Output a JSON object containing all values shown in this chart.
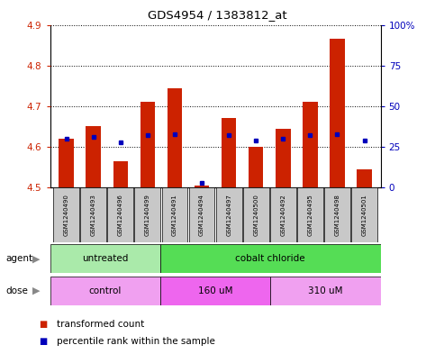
{
  "title": "GDS4954 / 1383812_at",
  "samples": [
    "GSM1240490",
    "GSM1240493",
    "GSM1240496",
    "GSM1240499",
    "GSM1240491",
    "GSM1240494",
    "GSM1240497",
    "GSM1240500",
    "GSM1240492",
    "GSM1240495",
    "GSM1240498",
    "GSM1240501"
  ],
  "transformed_count": [
    4.62,
    4.65,
    4.565,
    4.71,
    4.745,
    4.505,
    4.67,
    4.6,
    4.645,
    4.71,
    4.865,
    4.545
  ],
  "percentile_rank": [
    30,
    31,
    28,
    32,
    33,
    3,
    32,
    29,
    30,
    32,
    33,
    29
  ],
  "ymin": 4.5,
  "ymax": 4.9,
  "yticks": [
    4.5,
    4.6,
    4.7,
    4.8,
    4.9
  ],
  "right_yticks": [
    0,
    25,
    50,
    75,
    100
  ],
  "right_yticklabels": [
    "0",
    "25",
    "50",
    "75",
    "100%"
  ],
  "agent_groups": [
    {
      "label": "untreated",
      "start": 0,
      "end": 4,
      "color": "#aaeaaa"
    },
    {
      "label": "cobalt chloride",
      "start": 4,
      "end": 12,
      "color": "#55dd55"
    }
  ],
  "dose_groups": [
    {
      "label": "control",
      "start": 0,
      "end": 4,
      "color": "#f0a0f0"
    },
    {
      "label": "160 uM",
      "start": 4,
      "end": 8,
      "color": "#ee66ee"
    },
    {
      "label": "310 uM",
      "start": 8,
      "end": 12,
      "color": "#f0a0f0"
    }
  ],
  "bar_color": "#cc2200",
  "dot_color": "#0000bb",
  "bar_bottom": 4.5,
  "bar_width": 0.55,
  "grid_color": "#000000",
  "tick_label_color_left": "#cc2200",
  "tick_label_color_right": "#0000bb",
  "legend_items": [
    {
      "label": "transformed count",
      "color": "#cc2200"
    },
    {
      "label": "percentile rank within the sample",
      "color": "#0000bb"
    }
  ],
  "sample_box_color": "#c8c8c8",
  "arrow_color": "#888888"
}
